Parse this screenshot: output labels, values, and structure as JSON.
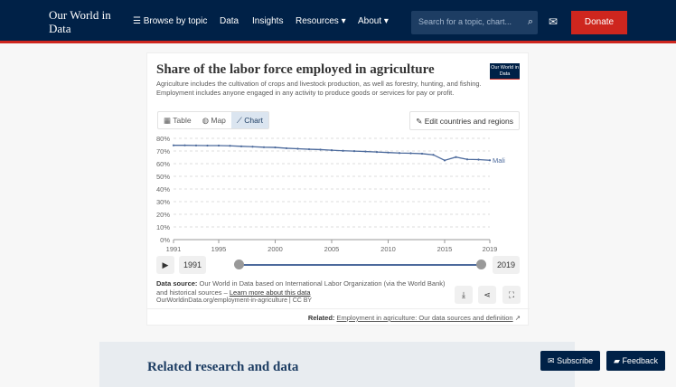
{
  "nav": {
    "logo": "Our World in Data",
    "items": [
      "Browse by topic",
      "Data",
      "Insights",
      "Resources",
      "About"
    ],
    "search_placeholder": "Search for a topic, chart...",
    "donate": "Donate"
  },
  "card": {
    "title": "Share of the labor force employed in agriculture",
    "subtitle": "Agriculture includes the cultivation of crops and livestock production, as well as forestry, hunting, and fishing. Employment includes anyone engaged in any activity to produce goods or services for pay or profit.",
    "badge": "Our World in Data",
    "tabs": [
      "Table",
      "Map",
      "Chart"
    ],
    "active_tab": "Chart",
    "edit": "Edit countries and regions",
    "timeline": {
      "start": "1991",
      "end": "2019"
    },
    "source_label": "Data source:",
    "source": "Our World in Data based on International Labor Organization (via the World Bank) and historical sources – ",
    "learn_more": "Learn more about this data",
    "url": "OurWorldinData.org/employment-in-agriculture | CC BY",
    "related_label": "Related:",
    "related_link": "Employment in agriculture: Our data sources and definition"
  },
  "chart_data": {
    "type": "line",
    "title": "Share of the labor force employed in agriculture",
    "ylim": [
      0,
      80
    ],
    "yticks": [
      "0%",
      "10%",
      "20%",
      "30%",
      "40%",
      "50%",
      "60%",
      "70%",
      "80%"
    ],
    "xticks": [
      "1991",
      "1995",
      "2000",
      "2005",
      "2010",
      "2015",
      "2019"
    ],
    "series": [
      {
        "name": "Mali",
        "color": "#4c6a9c",
        "x": [
          1991,
          1992,
          1993,
          1994,
          1995,
          1996,
          1997,
          1998,
          1999,
          2000,
          2001,
          2002,
          2003,
          2004,
          2005,
          2006,
          2007,
          2008,
          2009,
          2010,
          2011,
          2012,
          2013,
          2014,
          2015,
          2016,
          2017,
          2018,
          2019
        ],
        "values": [
          74.5,
          74.5,
          74.4,
          74.3,
          74.3,
          74.1,
          73.7,
          73.4,
          73.0,
          72.8,
          72.2,
          71.8,
          71.4,
          71.1,
          70.6,
          70.2,
          69.9,
          69.6,
          69.2,
          68.8,
          68.4,
          68.2,
          67.9,
          67.0,
          62.6,
          65.2,
          63.4,
          63.2,
          62.7
        ]
      }
    ]
  },
  "footer": {
    "related_heading": "Related research and data",
    "subscribe": "Subscribe",
    "feedback": "Feedback"
  }
}
